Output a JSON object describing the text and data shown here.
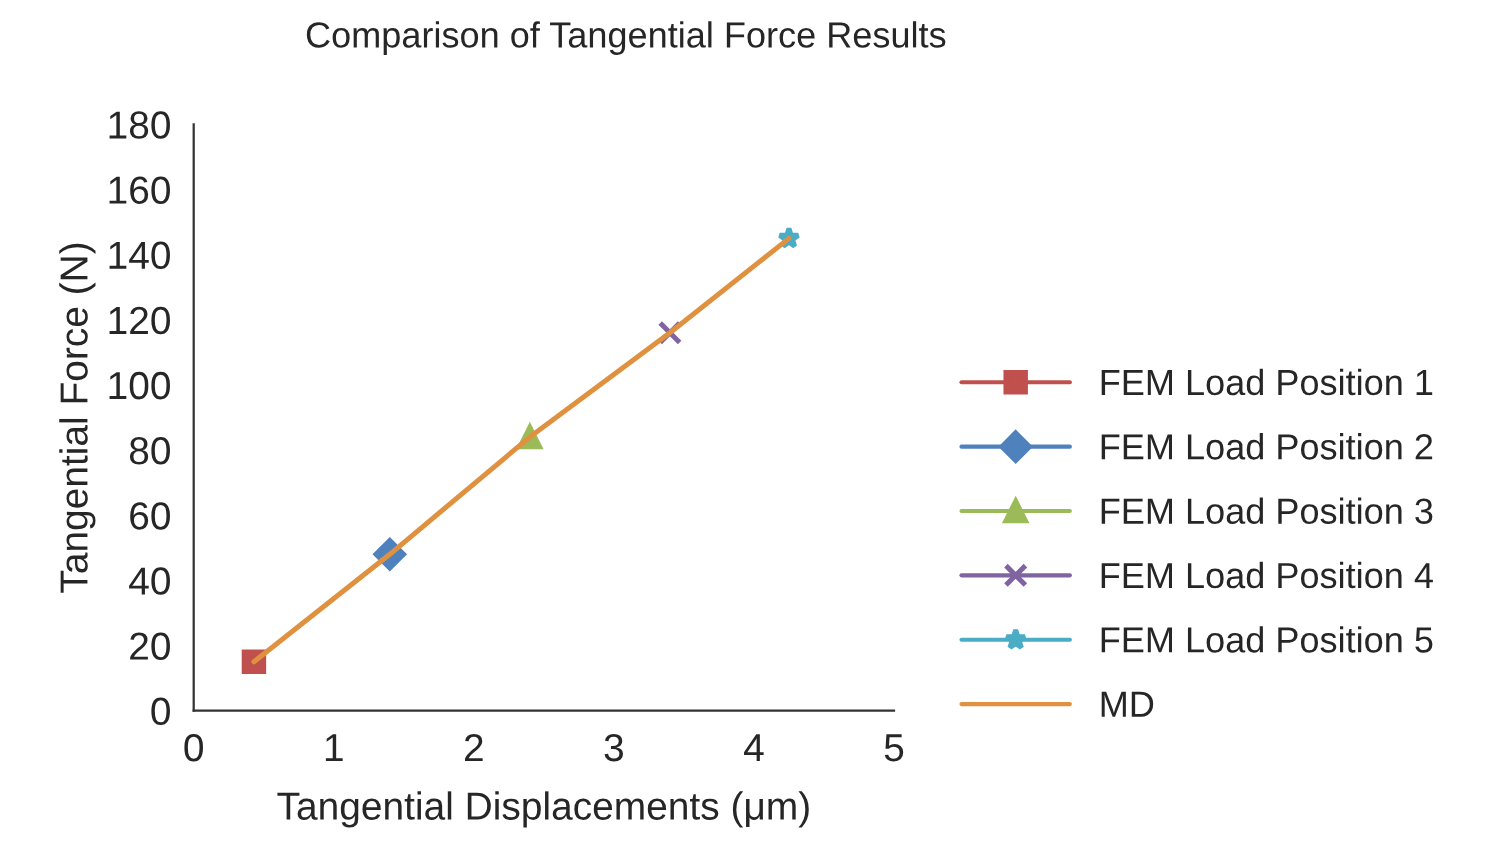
{
  "chart_data": {
    "type": "line",
    "title": "Comparison of Tangential Force Results",
    "xlabel": "Tangential Displacements (μm)",
    "ylabel": "Tangential Force (N)",
    "xlim": [
      0,
      5
    ],
    "xticks": [
      0,
      1,
      2,
      3,
      4,
      5
    ],
    "ylim": [
      0,
      180
    ],
    "yticks": [
      0,
      20,
      40,
      60,
      80,
      100,
      120,
      140,
      160,
      180
    ],
    "grid": false,
    "legend": "right",
    "series": [
      {
        "name": "FEM Load Position 1",
        "color": "#c0504d",
        "marker": "square",
        "x": [
          0.43
        ],
        "values": [
          15
        ]
      },
      {
        "name": "FEM Load Position 2",
        "color": "#4f81bd",
        "marker": "diamond",
        "x": [
          1.4
        ],
        "values": [
          48
        ]
      },
      {
        "name": "FEM Load Position 3",
        "color": "#9bbb59",
        "marker": "triangle",
        "x": [
          2.4
        ],
        "values": [
          84
        ]
      },
      {
        "name": "FEM Load Position 4",
        "color": "#8064a2",
        "marker": "cross",
        "x": [
          3.4
        ],
        "values": [
          116
        ]
      },
      {
        "name": "FEM Load Position 5",
        "color": "#4bacc6",
        "marker": "star",
        "x": [
          4.25
        ],
        "values": [
          145
        ]
      },
      {
        "name": "MD",
        "color": "#e0913f",
        "marker": "none",
        "x": [
          0.43,
          1.4,
          2.4,
          3.4,
          4.25
        ],
        "values": [
          15,
          48,
          84,
          116,
          145
        ]
      }
    ]
  }
}
